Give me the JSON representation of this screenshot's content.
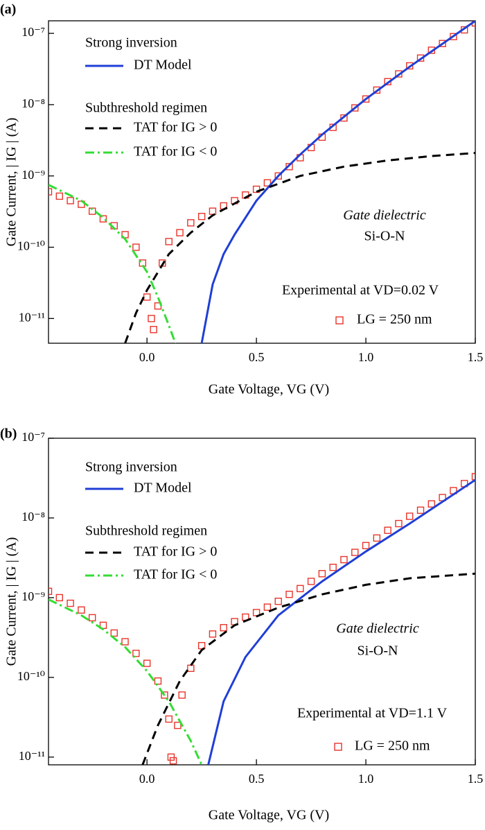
{
  "chart_data": [
    {
      "type": "line",
      "panel_label": "(a)",
      "log_y": true,
      "x_label": "Gate Voltage, VG (V)",
      "y_label": "Gate Current, | IG | (A)",
      "xlim": [
        -0.45,
        1.5
      ],
      "ylim": [
        4.5e-12,
        1.5e-07
      ],
      "xticks": [
        {
          "value": 0,
          "label": "0.0"
        },
        0.5,
        {
          "value": 1,
          "label": "1.0"
        },
        1.5
      ],
      "yticks": [
        {
          "value": 1e-11,
          "label": "10⁻¹¹"
        },
        {
          "value": 1e-10,
          "label": "10⁻¹⁰"
        },
        {
          "value": 1e-09,
          "label": "10⁻⁹"
        },
        {
          "value": 1e-08,
          "label": "10⁻⁸"
        },
        {
          "value": 1e-07,
          "label": "10⁻⁷"
        }
      ],
      "annotations": [
        "Strong inversion",
        "Subthreshold regimen",
        "Gate dielectric",
        "Si-O-N",
        "Experimental at VD=0.02 V"
      ],
      "series": [
        {
          "name": "LG = 250 nm",
          "color": "#e8342a",
          "style": "square",
          "x": [
            -0.45,
            -0.4,
            -0.35,
            -0.3,
            -0.25,
            -0.2,
            -0.15,
            -0.1,
            -0.05,
            -0.02,
            0.0,
            0.02,
            0.03,
            0.05,
            0.07,
            0.1,
            0.15,
            0.2,
            0.25,
            0.3,
            0.35,
            0.4,
            0.45,
            0.5,
            0.55,
            0.6,
            0.65,
            0.7,
            0.75,
            0.8,
            0.85,
            0.9,
            0.95,
            1.0,
            1.05,
            1.1,
            1.15,
            1.2,
            1.25,
            1.3,
            1.35,
            1.4,
            1.45,
            1.5
          ],
          "values": [
            6e-10,
            5.2e-10,
            4.5e-10,
            4e-10,
            3.2e-10,
            2.5e-10,
            2e-10,
            1.5e-10,
            1e-10,
            6e-11,
            2e-11,
            1e-11,
            7e-12,
            1.5e-11,
            6e-11,
            1.2e-10,
            1.6e-10,
            2.2e-10,
            2.7e-10,
            3.2e-10,
            3.8e-10,
            4.5e-10,
            5.4e-10,
            6.5e-10,
            8e-10,
            1e-09,
            1.35e-09,
            1.8e-09,
            2.5e-09,
            3.5e-09,
            4.8e-09,
            6.5e-09,
            9e-09,
            1.2e-08,
            1.6e-08,
            2.1e-08,
            2.7e-08,
            3.5e-08,
            4.5e-08,
            5.8e-08,
            7.2e-08,
            9e-08,
            1.12e-07,
            1.4e-07
          ]
        },
        {
          "name": "DT Model",
          "color": "#1f3fd6",
          "style": "solid",
          "x": [
            0.25,
            0.3,
            0.35,
            0.4,
            0.5,
            0.6,
            0.7,
            0.8,
            1.0,
            1.2,
            1.5
          ],
          "values": [
            4.5e-12,
            3e-11,
            8e-11,
            1.5e-10,
            4.5e-10,
            1e-09,
            2e-09,
            3.8e-09,
            1.2e-08,
            3.4e-08,
            1.5e-07
          ]
        },
        {
          "name": "TAT for IG > 0",
          "color": "#000000",
          "style": "dash",
          "x": [
            -0.1,
            -0.05,
            0.0,
            0.1,
            0.2,
            0.3,
            0.5,
            0.7,
            0.9,
            1.1,
            1.3,
            1.5
          ],
          "values": [
            4.5e-12,
            1.2e-11,
            2.5e-11,
            8e-11,
            1.6e-10,
            2.8e-10,
            6e-10,
            1e-09,
            1.35e-09,
            1.65e-09,
            1.9e-09,
            2.1e-09
          ]
        },
        {
          "name": "TAT for IG < 0",
          "color": "#33dd33",
          "style": "dashdot",
          "x": [
            -0.45,
            -0.3,
            -0.2,
            -0.1,
            0.0,
            0.05,
            0.1,
            0.13
          ],
          "values": [
            7.5e-10,
            4.5e-10,
            2.6e-10,
            1.3e-10,
            4.5e-11,
            2e-11,
            8e-12,
            4.5e-12
          ]
        }
      ]
    },
    {
      "type": "line",
      "panel_label": "(b)",
      "log_y": true,
      "x_label": "Gate Voltage, VG (V)",
      "y_label": "Gate Current, | IG | (A)",
      "xlim": [
        -0.45,
        1.5
      ],
      "ylim": [
        8e-12,
        1e-07
      ],
      "xticks": [
        {
          "value": 0,
          "label": "0.0"
        },
        0.5,
        {
          "value": 1,
          "label": "1.0"
        },
        1.5
      ],
      "yticks": [
        {
          "value": 1e-11,
          "label": "10⁻¹¹"
        },
        {
          "value": 1e-10,
          "label": "10⁻¹⁰"
        },
        {
          "value": 1e-09,
          "label": "10⁻⁹"
        },
        {
          "value": 1e-08,
          "label": "10⁻⁸"
        },
        {
          "value": 1e-07,
          "label": "10⁻⁷"
        }
      ],
      "annotations": [
        "Strong inversion",
        "Subthreshold regimen",
        "Gate dielectric",
        "Si-O-N",
        "Experimental at VD=1.1 V"
      ],
      "series": [
        {
          "name": "LG = 250 nm",
          "color": "#e8342a",
          "style": "square",
          "x": [
            -0.45,
            -0.4,
            -0.35,
            -0.3,
            -0.25,
            -0.2,
            -0.15,
            -0.1,
            -0.05,
            0.0,
            0.05,
            0.08,
            0.1,
            0.11,
            0.12,
            0.14,
            0.16,
            0.2,
            0.25,
            0.3,
            0.35,
            0.4,
            0.45,
            0.5,
            0.55,
            0.6,
            0.65,
            0.7,
            0.75,
            0.8,
            0.85,
            0.9,
            0.95,
            1.0,
            1.05,
            1.1,
            1.15,
            1.2,
            1.25,
            1.3,
            1.35,
            1.4,
            1.45,
            1.5
          ],
          "values": [
            1.2e-09,
            1e-09,
            8.5e-10,
            7e-10,
            5.6e-10,
            4.5e-10,
            3.6e-10,
            2.8e-10,
            2e-10,
            1.5e-10,
            9e-11,
            6e-11,
            3e-11,
            1e-11,
            9e-12,
            2.5e-11,
            6e-11,
            1.3e-10,
            2.5e-10,
            3.5e-10,
            4.2e-10,
            5e-10,
            5.7e-10,
            6.5e-10,
            7.6e-10,
            9e-10,
            1.1e-09,
            1.3e-09,
            1.6e-09,
            2e-09,
            2.4e-09,
            3e-09,
            3.7e-09,
            4.5e-09,
            5.6e-09,
            7e-09,
            8.5e-09,
            1.05e-08,
            1.25e-08,
            1.5e-08,
            1.8e-08,
            2.2e-08,
            2.7e-08,
            3.3e-08
          ]
        },
        {
          "name": "DT Model",
          "color": "#1f3fd6",
          "style": "solid",
          "x": [
            0.28,
            0.35,
            0.45,
            0.6,
            0.8,
            1.0,
            1.2,
            1.5
          ],
          "values": [
            8e-12,
            5e-11,
            1.8e-10,
            6e-10,
            1.6e-09,
            3.8e-09,
            8.5e-09,
            3e-08
          ]
        },
        {
          "name": "TAT for IG > 0",
          "color": "#000000",
          "style": "dash",
          "x": [
            -0.02,
            0.05,
            0.15,
            0.25,
            0.4,
            0.6,
            0.8,
            1.0,
            1.2,
            1.5
          ],
          "values": [
            8e-12,
            2.5e-11,
            9e-11,
            2.2e-10,
            4.5e-10,
            7.5e-10,
            1.1e-09,
            1.45e-09,
            1.75e-09,
            2e-09
          ]
        },
        {
          "name": "TAT for IG < 0",
          "color": "#33dd33",
          "style": "dashdot",
          "x": [
            -0.45,
            -0.3,
            -0.2,
            -0.1,
            0.0,
            0.1,
            0.2,
            0.25
          ],
          "values": [
            9.5e-10,
            6e-10,
            4e-10,
            2.4e-10,
            1.2e-10,
            5e-11,
            1.6e-11,
            8e-12
          ]
        }
      ]
    }
  ]
}
